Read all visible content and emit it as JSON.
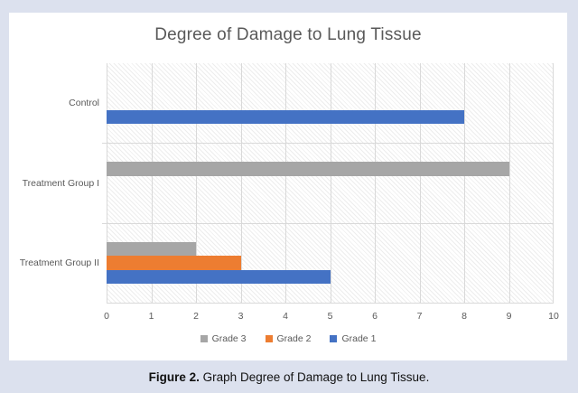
{
  "page": {
    "background": "#dce1ee",
    "card_background": "#ffffff"
  },
  "chart_data": {
    "type": "bar",
    "orientation": "horizontal",
    "title": "Degree of Damage to Lung Tissue",
    "categories": [
      "Control",
      "Treatment Group I",
      "Treatment Group II"
    ],
    "series": [
      {
        "name": "Grade 3",
        "color": "#a6a6a6",
        "values": [
          0,
          9,
          2
        ]
      },
      {
        "name": "Grade 2",
        "color": "#ed7d31",
        "values": [
          0,
          0,
          3
        ]
      },
      {
        "name": "Grade 1",
        "color": "#4472c4",
        "values": [
          8,
          0,
          5
        ]
      }
    ],
    "xlim": [
      0,
      10
    ],
    "xticks": [
      0,
      1,
      2,
      3,
      4,
      5,
      6,
      7,
      8,
      9,
      10
    ],
    "grid": true,
    "gridline_color": "#d9d9d9",
    "axis_text_color": "#595959",
    "title_color": "#595959",
    "plot_background": "diagonal-hatch",
    "legend_position": "bottom"
  },
  "caption": {
    "label": "Figure 2.",
    "text": " Graph Degree of Damage to Lung Tissue."
  }
}
